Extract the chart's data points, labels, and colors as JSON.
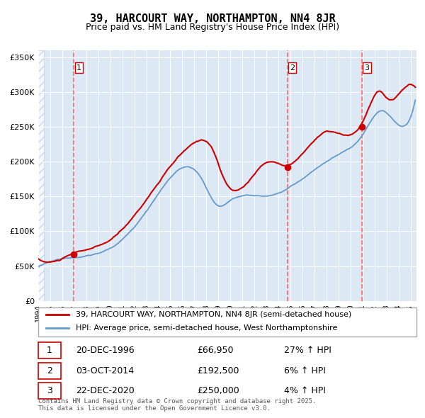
{
  "title": "39, HARCOURT WAY, NORTHAMPTON, NN4 8JR",
  "subtitle": "Price paid vs. HM Land Registry's House Price Index (HPI)",
  "legend_line1": "39, HARCOURT WAY, NORTHAMPTON, NN4 8JR (semi-detached house)",
  "legend_line2": "HPI: Average price, semi-detached house, West Northamptonshire",
  "footnote": "Contains HM Land Registry data © Crown copyright and database right 2025.\nThis data is licensed under the Open Government Licence v3.0.",
  "sales": [
    {
      "num": 1,
      "date": "20-DEC-1996",
      "price": 66950,
      "hpi_change": "27% ↑ HPI",
      "x_year": 1996.97
    },
    {
      "num": 2,
      "date": "03-OCT-2014",
      "price": 192500,
      "hpi_change": "6% ↑ HPI",
      "x_year": 2014.75
    },
    {
      "num": 3,
      "date": "22-DEC-2020",
      "price": 250000,
      "hpi_change": "4% ↑ HPI",
      "x_year": 2020.97
    }
  ],
  "ylim": [
    0,
    360000
  ],
  "yticks": [
    0,
    50000,
    100000,
    150000,
    200000,
    250000,
    300000,
    350000
  ],
  "ytick_labels": [
    "£0",
    "£50K",
    "£100K",
    "£150K",
    "£200K",
    "£250K",
    "£300K",
    "£350K"
  ],
  "xlim_start": 1994.0,
  "xlim_end": 2025.5,
  "background_color": "#dce9f5",
  "plot_bg_color": "#dce9f5",
  "hatch_color": "#b0c8e0",
  "red_line_color": "#cc0000",
  "blue_line_color": "#6699cc",
  "dashed_line_color": "#ff6666",
  "marker_color": "#cc0000",
  "grid_color": "#ffffff",
  "title_fontsize": 11,
  "subtitle_fontsize": 9,
  "tick_fontsize": 8,
  "legend_fontsize": 8.5,
  "annotation_fontsize": 8
}
